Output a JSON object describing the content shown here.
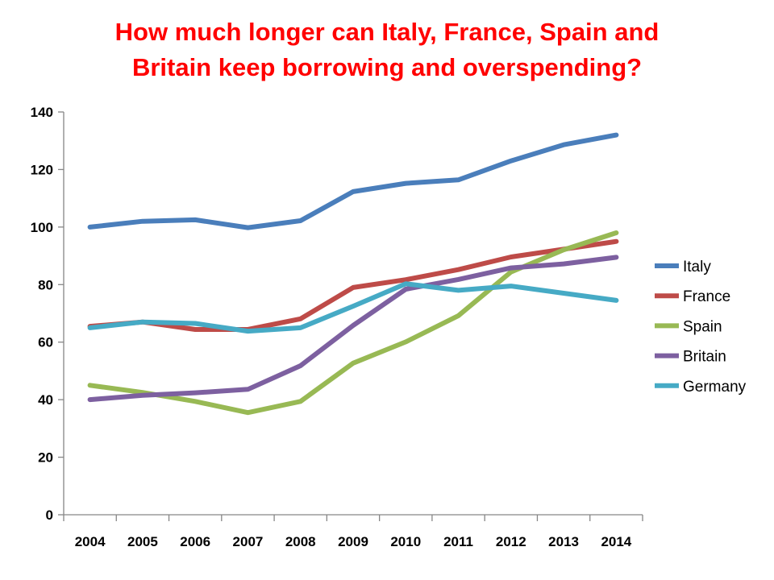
{
  "title_line1": "How much longer can Italy, France, Spain and",
  "title_line2": "Britain keep borrowing and overspending?",
  "chart_data": {
    "type": "line",
    "title": "How much longer can Italy, France, Spain and Britain keep borrowing and overspending?",
    "xlabel": "",
    "ylabel": "",
    "categories": [
      "2004",
      "2005",
      "2006",
      "2007",
      "2008",
      "2009",
      "2010",
      "2011",
      "2012",
      "2013",
      "2014"
    ],
    "ylim": [
      0,
      140
    ],
    "yticks": [
      0,
      20,
      40,
      60,
      80,
      100,
      120,
      140
    ],
    "grid": false,
    "legend": "right",
    "series": [
      {
        "name": "Italy",
        "color": "#4a7ebb",
        "values": [
          100,
          102,
          102.5,
          99.8,
          102.2,
          112.3,
          115.2,
          116.4,
          123,
          128.6,
          132
        ]
      },
      {
        "name": "France",
        "color": "#be4b48",
        "values": [
          65.5,
          67,
          64.4,
          64.4,
          68.1,
          79,
          81.7,
          85.2,
          89.6,
          92.3,
          95
        ]
      },
      {
        "name": "Spain",
        "color": "#98b954",
        "values": [
          45,
          42.5,
          39.4,
          35.5,
          39.4,
          52.7,
          60.1,
          69.2,
          84.4,
          92.1,
          98
        ]
      },
      {
        "name": "Britain",
        "color": "#7d60a0",
        "values": [
          40,
          41.5,
          42.4,
          43.6,
          51.8,
          65.8,
          78.4,
          81.8,
          85.8,
          87.2,
          89.5
        ]
      },
      {
        "name": "Germany",
        "color": "#46aac5",
        "values": [
          65,
          67,
          66.5,
          63.8,
          65,
          72.5,
          80.3,
          78,
          79.5,
          77,
          74.5
        ]
      }
    ]
  }
}
